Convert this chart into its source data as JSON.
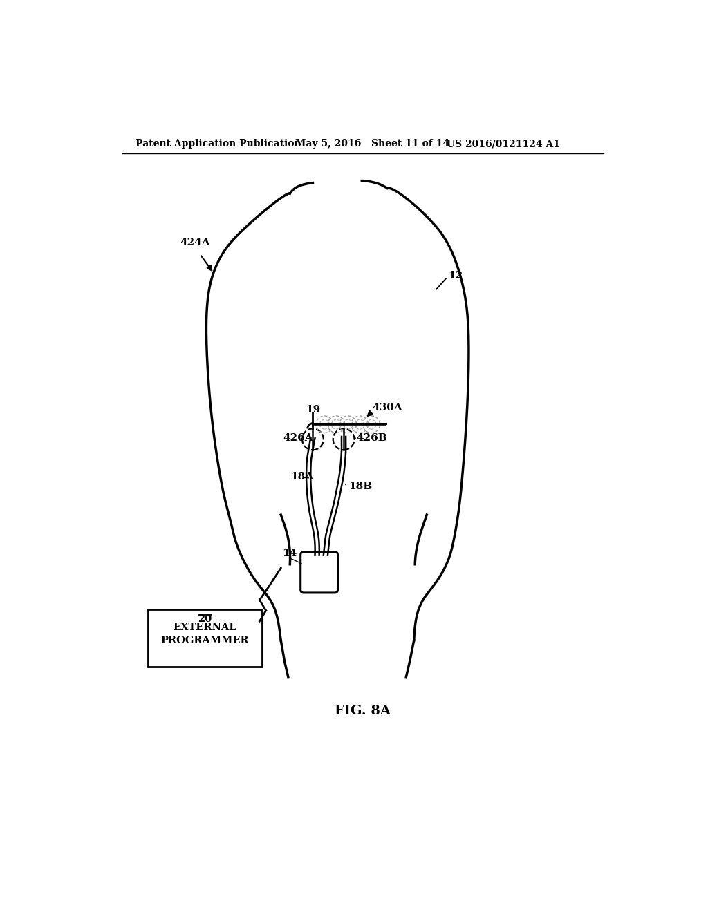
{
  "header_left": "Patent Application Publication",
  "header_mid": "May 5, 2016   Sheet 11 of 14",
  "header_right": "US 2016/0121124 A1",
  "fig_label": "FIG. 8A",
  "bg_color": "#ffffff",
  "line_color": "#000000",
  "label_12": "12",
  "label_14": "14",
  "label_18A": "18A",
  "label_18B": "18B",
  "label_19": "19",
  "label_424A": "424A",
  "label_426A": "426A",
  "label_426B": "426B",
  "label_430A": "430A",
  "box_text": "EXTERNAL\nPROGRAMMER\n",
  "box_text_underline": "20"
}
